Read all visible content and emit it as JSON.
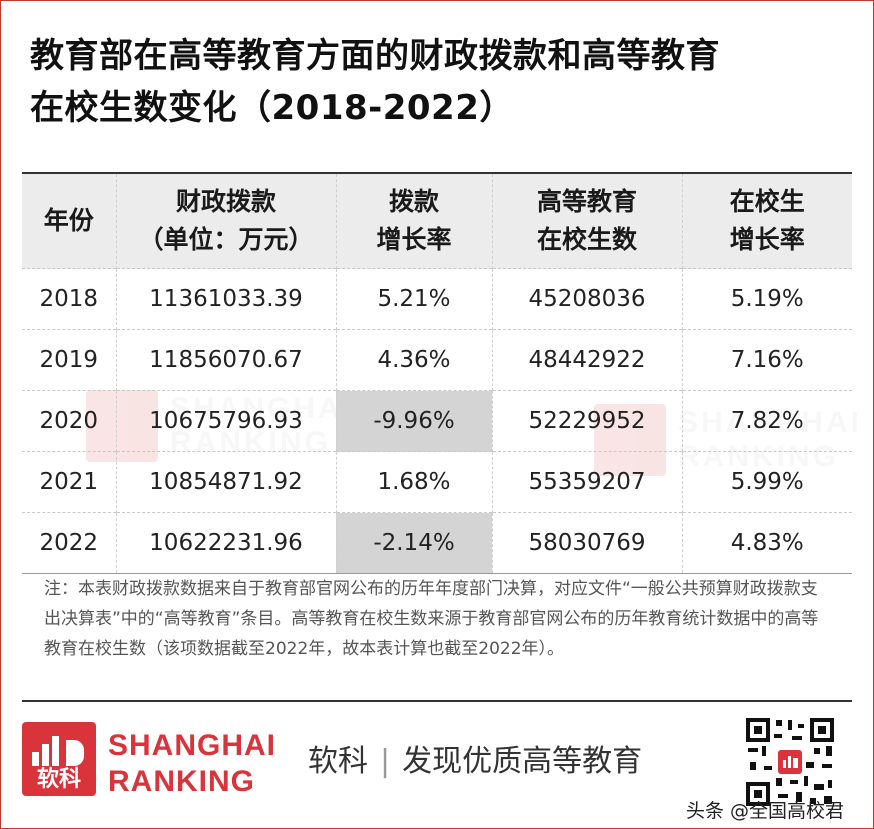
{
  "title": {
    "line1": "教育部在高等教育方面的财政拨款和高等教育",
    "line2": "在校生数变化（2018-2022）"
  },
  "table": {
    "headers": [
      {
        "line1": "年份",
        "line2": ""
      },
      {
        "line1": "财政拨款",
        "line2": "（单位：万元）"
      },
      {
        "line1": "拨款",
        "line2": "增长率"
      },
      {
        "line1": "高等教育",
        "line2": "在校生数"
      },
      {
        "line1": "在校生",
        "line2": "增长率"
      }
    ],
    "rows": [
      {
        "year": "2018",
        "funding": "11361033.39",
        "funding_growth": "5.21%",
        "students": "45208036",
        "student_growth": "5.19%"
      },
      {
        "year": "2019",
        "funding": "11856070.67",
        "funding_growth": "4.36%",
        "students": "48442922",
        "student_growth": "7.16%"
      },
      {
        "year": "2020",
        "funding": "10675796.93",
        "funding_growth": "-9.96%",
        "students": "52229952",
        "student_growth": "7.82%"
      },
      {
        "year": "2021",
        "funding": "10854871.92",
        "funding_growth": "1.68%",
        "students": "55359207",
        "student_growth": "5.99%"
      },
      {
        "year": "2022",
        "funding": "10622231.96",
        "funding_growth": "-2.14%",
        "students": "58030769",
        "student_growth": "4.83%"
      }
    ]
  },
  "note": "注：本表财政拨款数据来自于教育部官网公布的历年年度部门决算，对应文件“一般公共预算财政拨款支出决算表”中的“高等教育”条目。高等教育在校生数来源于教育部官网公布的历年教育统计数据中的高等教育在校生数（该项数据截至2022年，故本表计算也截至2022年）。",
  "footer": {
    "logo_cn": "软科",
    "brand_line1": "SHANGHAI",
    "brand_line2": "RANKING",
    "slogan_left": "软科",
    "slogan_sep": "|",
    "slogan_right": "发现优质高等教育",
    "credit": "头条 @全国高校君"
  },
  "watermark": {
    "line1": "SHANGHAI",
    "line2": "RANKING",
    "logo_cn": "软科"
  },
  "colors": {
    "brand_red": "#d9343b",
    "negative_highlight": "#d4d4d4",
    "header_bg": "#ececec"
  },
  "icons": {
    "logo": "shanghai-ranking-logo-icon",
    "qr": "qr-code-icon"
  }
}
